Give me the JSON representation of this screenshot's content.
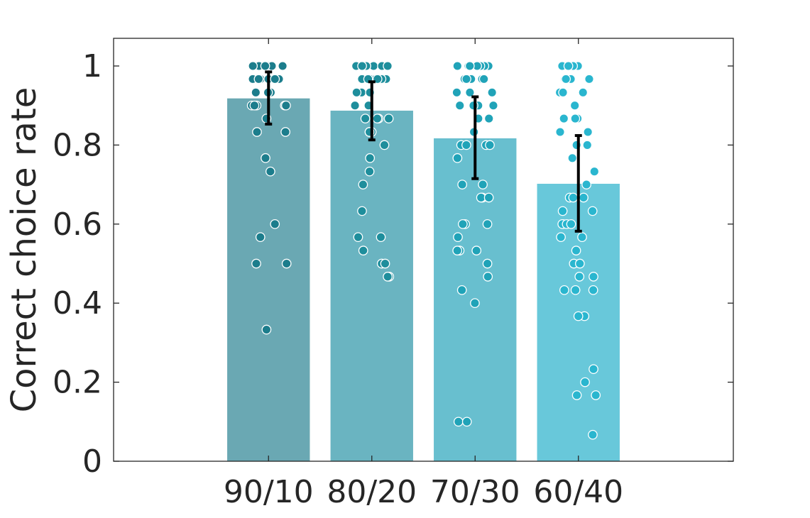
{
  "chart_data": {
    "type": "bar",
    "title": "",
    "xlabel": "",
    "ylabel": "Correct choice rate",
    "ylim": [
      0,
      1.07
    ],
    "yticks": [
      0,
      0.2,
      0.4,
      0.6,
      0.8,
      1
    ],
    "ytick_labels": [
      "0",
      "0.2",
      "0.4",
      "0.6",
      "0.8",
      "1"
    ],
    "grid": false,
    "legend": "none",
    "categories": [
      "90/10",
      "80/20",
      "70/30",
      "60/40"
    ],
    "values": [
      0.918,
      0.887,
      0.817,
      0.702
    ],
    "error_low": [
      0.853,
      0.813,
      0.715,
      0.582
    ],
    "error_high": [
      0.985,
      0.96,
      0.922,
      0.824
    ],
    "bar_colors": [
      "#6aa8b3",
      "#6ab4c1",
      "#68bfcf",
      "#68c8da"
    ],
    "point_colors": [
      "#1c7d8c",
      "#1e8e9c",
      "#20a3b8",
      "#2ab6cf"
    ],
    "points": [
      [
        1,
        1,
        1,
        1,
        1,
        1,
        1,
        1,
        1,
        1,
        0.967,
        0.967,
        0.967,
        0.967,
        0.967,
        0.967,
        0.967,
        0.933,
        0.933,
        0.933,
        0.9,
        0.9,
        0.9,
        0.9,
        0.9,
        0.867,
        0.833,
        0.833,
        0.767,
        0.733,
        0.6,
        0.567,
        0.5,
        0.5,
        0.333
      ],
      [
        1,
        1,
        1,
        1,
        1,
        1,
        1,
        1,
        1,
        1,
        0.967,
        0.967,
        0.967,
        0.967,
        0.967,
        0.967,
        0.967,
        0.933,
        0.933,
        0.933,
        0.933,
        0.9,
        0.9,
        0.867,
        0.867,
        0.867,
        0.867,
        0.833,
        0.833,
        0.833,
        0.8,
        0.767,
        0.733,
        0.7,
        0.633,
        0.567,
        0.567,
        0.533,
        0.5,
        0.5,
        0.467,
        0.467
      ],
      [
        1,
        1,
        1,
        1,
        1,
        1,
        1,
        0.967,
        0.967,
        0.967,
        0.967,
        0.967,
        0.933,
        0.933,
        0.933,
        0.9,
        0.9,
        0.9,
        0.9,
        0.9,
        0.867,
        0.867,
        0.833,
        0.8,
        0.8,
        0.8,
        0.8,
        0.767,
        0.7,
        0.7,
        0.667,
        0.667,
        0.667,
        0.6,
        0.6,
        0.6,
        0.567,
        0.533,
        0.533,
        0.533,
        0.5,
        0.467,
        0.433,
        0.4,
        0.1,
        0.1
      ],
      [
        1,
        1,
        1,
        1,
        0.967,
        0.967,
        0.967,
        0.967,
        0.933,
        0.933,
        0.933,
        0.9,
        0.867,
        0.867,
        0.867,
        0.833,
        0.833,
        0.8,
        0.8,
        0.767,
        0.733,
        0.7,
        0.667,
        0.667,
        0.667,
        0.633,
        0.633,
        0.6,
        0.6,
        0.6,
        0.6,
        0.567,
        0.567,
        0.533,
        0.5,
        0.5,
        0.467,
        0.467,
        0.433,
        0.433,
        0.433,
        0.367,
        0.367,
        0.233,
        0.2,
        0.167,
        0.167,
        0.067
      ]
    ]
  }
}
